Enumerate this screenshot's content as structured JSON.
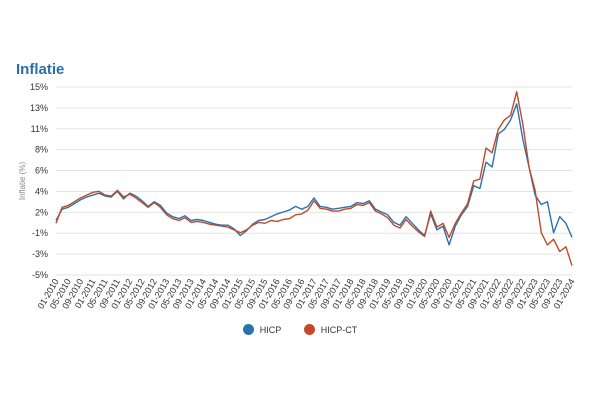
{
  "chart_data": {
    "type": "line",
    "title": "Inflatie",
    "ylabel": "Inflatie (%)",
    "xlabel": "",
    "ylim": [
      -5,
      15
    ],
    "ytick_labels": [
      "15%",
      "13%",
      "11%",
      "8%",
      "6%",
      "4%",
      "2%",
      "-1%",
      "-3%",
      "-5%"
    ],
    "grid": "horizontal",
    "legend": "bottom-center",
    "x_tick_labels": [
      "01-2010",
      "05-2010",
      "09-2010",
      "01-2011",
      "05-2011",
      "09-2011",
      "01-2012",
      "05-2012",
      "09-2012",
      "01-2013",
      "05-2013",
      "09-2013",
      "01-2014",
      "05-2014",
      "09-2014",
      "01-2015",
      "05-2015",
      "09-2015",
      "01-2016",
      "05-2016",
      "09-2016",
      "01-2017",
      "05-2017",
      "09-2017",
      "01-2018",
      "05-2018",
      "09-2018",
      "01-2019",
      "05-2019",
      "09-2019",
      "01-2020",
      "05-2020",
      "09-2020",
      "01-2021",
      "05-2021",
      "09-2021",
      "01-2022",
      "05-2022",
      "09-2022",
      "01-2023",
      "05-2023",
      "09-2023",
      "01-2024"
    ],
    "x_start": "2010-01",
    "x_end": "2024-01",
    "series": [
      {
        "name": "HICP",
        "color": "#2a72ad",
        "x": [
          "2010-01",
          "2010-03",
          "2010-05",
          "2010-07",
          "2010-09",
          "2010-11",
          "2011-01",
          "2011-03",
          "2011-05",
          "2011-07",
          "2011-09",
          "2011-11",
          "2012-01",
          "2012-03",
          "2012-05",
          "2012-07",
          "2012-09",
          "2012-11",
          "2013-01",
          "2013-03",
          "2013-05",
          "2013-07",
          "2013-09",
          "2013-11",
          "2014-01",
          "2014-03",
          "2014-05",
          "2014-07",
          "2014-09",
          "2014-11",
          "2015-01",
          "2015-03",
          "2015-05",
          "2015-07",
          "2015-09",
          "2015-11",
          "2016-01",
          "2016-03",
          "2016-05",
          "2016-07",
          "2016-09",
          "2016-11",
          "2017-01",
          "2017-03",
          "2017-05",
          "2017-07",
          "2017-09",
          "2017-11",
          "2018-01",
          "2018-03",
          "2018-05",
          "2018-07",
          "2018-09",
          "2018-11",
          "2019-01",
          "2019-03",
          "2019-05",
          "2019-07",
          "2019-09",
          "2019-11",
          "2020-01",
          "2020-03",
          "2020-05",
          "2020-07",
          "2020-09",
          "2020-11",
          "2021-01",
          "2021-03",
          "2021-05",
          "2021-07",
          "2021-09",
          "2021-11",
          "2022-01",
          "2022-03",
          "2022-05",
          "2022-07",
          "2022-09",
          "2022-11",
          "2023-01",
          "2023-03",
          "2023-05",
          "2023-07",
          "2023-09",
          "2023-11",
          "2024-01"
        ],
        "y": [
          0.8,
          2.0,
          2.2,
          2.6,
          3.0,
          3.3,
          3.5,
          3.7,
          3.4,
          3.3,
          3.9,
          3.1,
          3.7,
          3.4,
          2.9,
          2.3,
          2.8,
          2.4,
          1.6,
          1.2,
          1.0,
          1.3,
          0.8,
          0.9,
          0.8,
          0.6,
          0.4,
          0.3,
          0.3,
          -0.1,
          -0.8,
          -0.3,
          0.4,
          0.8,
          0.9,
          1.2,
          1.5,
          1.7,
          1.9,
          2.3,
          2.0,
          2.3,
          3.2,
          2.3,
          2.2,
          2.0,
          2.1,
          2.2,
          2.3,
          2.7,
          2.6,
          2.9,
          2.0,
          1.7,
          1.4,
          0.6,
          0.3,
          1.2,
          0.5,
          -0.2,
          -0.8,
          1.5,
          -0.2,
          0.2,
          -1.8,
          0.2,
          1.4,
          2.3,
          4.5,
          4.2,
          7.0,
          6.5,
          10.0,
          10.5,
          11.5,
          13.2,
          9.4,
          6.5,
          3.5,
          2.5,
          2.8,
          -0.5,
          1.2,
          0.5,
          -1.0
        ]
      },
      {
        "name": "HICP-CT",
        "color": "#c2492a",
        "x": [
          "2010-01",
          "2010-03",
          "2010-05",
          "2010-07",
          "2010-09",
          "2010-11",
          "2011-01",
          "2011-03",
          "2011-05",
          "2011-07",
          "2011-09",
          "2011-11",
          "2012-01",
          "2012-03",
          "2012-05",
          "2012-07",
          "2012-09",
          "2012-11",
          "2013-01",
          "2013-03",
          "2013-05",
          "2013-07",
          "2013-09",
          "2013-11",
          "2014-01",
          "2014-03",
          "2014-05",
          "2014-07",
          "2014-09",
          "2014-11",
          "2015-01",
          "2015-03",
          "2015-05",
          "2015-07",
          "2015-09",
          "2015-11",
          "2016-01",
          "2016-03",
          "2016-05",
          "2016-07",
          "2016-09",
          "2016-11",
          "2017-01",
          "2017-03",
          "2017-05",
          "2017-07",
          "2017-09",
          "2017-11",
          "2018-01",
          "2018-03",
          "2018-05",
          "2018-07",
          "2018-09",
          "2018-11",
          "2019-01",
          "2019-03",
          "2019-05",
          "2019-07",
          "2019-09",
          "2019-11",
          "2020-01",
          "2020-03",
          "2020-05",
          "2020-07",
          "2020-09",
          "2020-11",
          "2021-01",
          "2021-03",
          "2021-05",
          "2021-07",
          "2021-09",
          "2021-11",
          "2022-01",
          "2022-03",
          "2022-05",
          "2022-07",
          "2022-09",
          "2022-11",
          "2023-01",
          "2023-03",
          "2023-05",
          "2023-07",
          "2023-09",
          "2023-11",
          "2024-01"
        ],
        "y": [
          0.5,
          2.2,
          2.4,
          2.8,
          3.2,
          3.5,
          3.8,
          3.9,
          3.5,
          3.4,
          4.0,
          3.3,
          3.6,
          3.2,
          2.7,
          2.2,
          2.7,
          2.2,
          1.4,
          1.0,
          0.8,
          1.1,
          0.6,
          0.7,
          0.6,
          0.4,
          0.3,
          0.2,
          0.1,
          -0.2,
          -0.5,
          -0.2,
          0.3,
          0.6,
          0.5,
          0.8,
          0.7,
          0.9,
          1.0,
          1.4,
          1.5,
          1.9,
          2.9,
          2.1,
          2.0,
          1.8,
          1.8,
          2.0,
          2.1,
          2.5,
          2.4,
          2.7,
          1.8,
          1.5,
          1.1,
          0.3,
          0.0,
          0.9,
          0.2,
          -0.4,
          -0.9,
          1.8,
          0.1,
          0.5,
          -1.0,
          0.5,
          1.6,
          2.6,
          5.0,
          5.2,
          8.5,
          8.0,
          10.5,
          11.5,
          12.0,
          14.5,
          11.0,
          6.5,
          4.0,
          -0.5,
          -1.8,
          -1.2,
          -2.5,
          -2.0,
          -4.0
        ]
      }
    ]
  }
}
